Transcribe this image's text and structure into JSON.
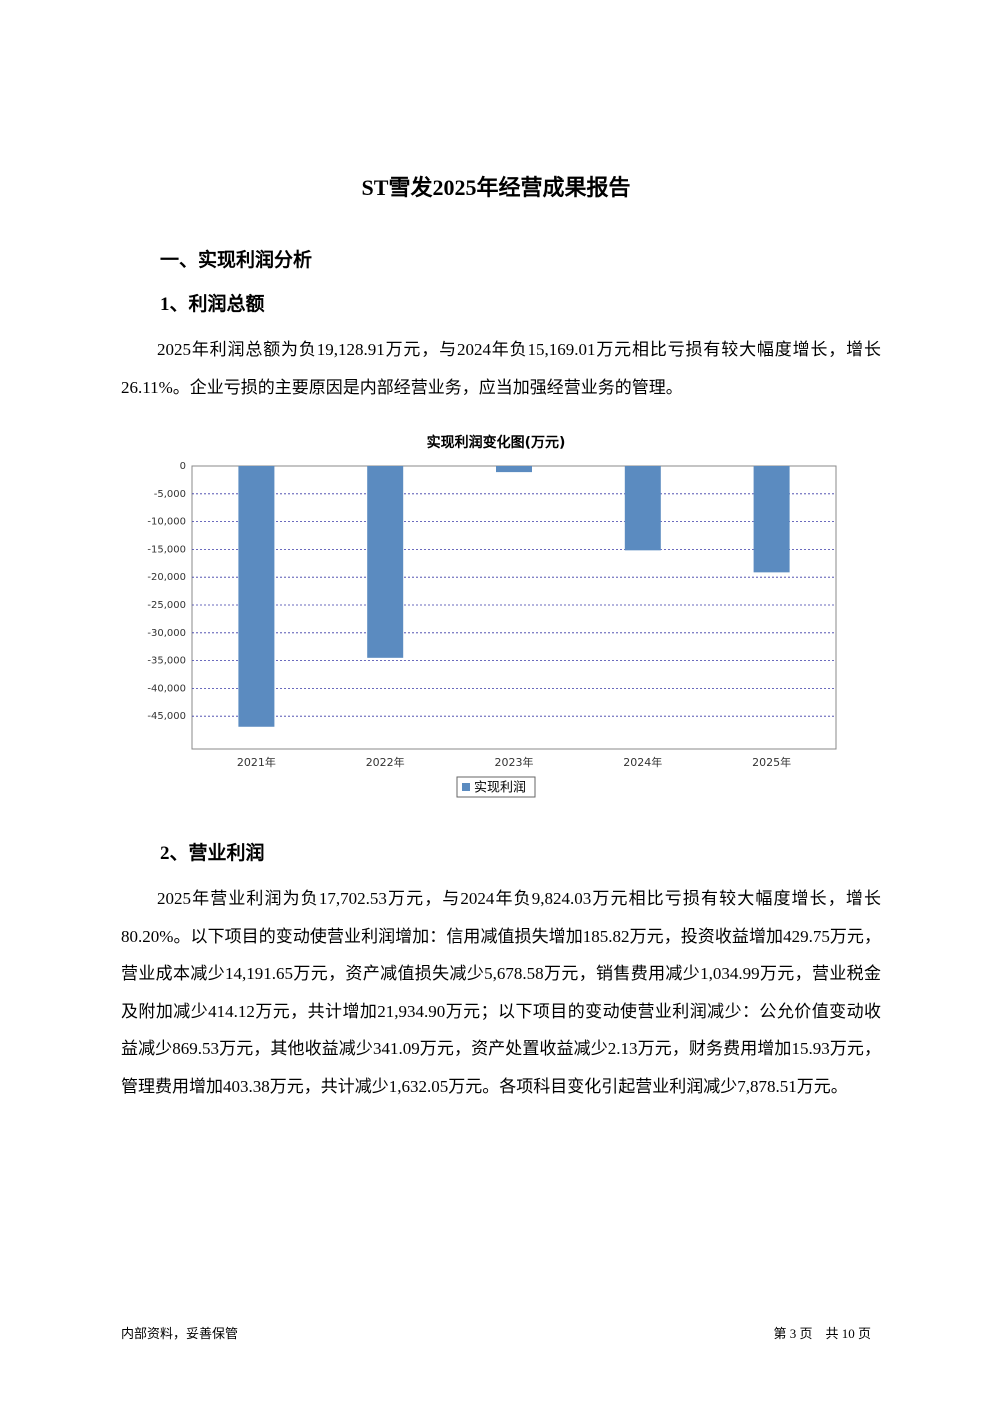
{
  "title": "ST雪发2025年经营成果报告",
  "section_heading": "一、实现利润分析",
  "subsections": [
    {
      "heading": "1、利润总额",
      "paragraph": "2025年利润总额为负19,128.91万元，与2024年负15,169.01万元相比亏损有较大幅度增长，增长26.11%。企业亏损的主要原因是内部经营业务，应当加强经营业务的管理。"
    },
    {
      "heading": "2、营业利润",
      "paragraph": "2025年营业利润为负17,702.53万元，与2024年负9,824.03万元相比亏损有较大幅度增长，增长80.20%。以下项目的变动使营业利润增加：信用减值损失增加185.82万元，投资收益增加429.75万元，营业成本减少14,191.65万元，资产减值损失减少5,678.58万元，销售费用减少1,034.99万元，营业税金及附加减少414.12万元，共计增加21,934.90万元；以下项目的变动使营业利润减少：公允价值变动收益减少869.53万元，其他收益减少341.09万元，资产处置收益减少2.13万元，财务费用增加15.93万元，管理费用增加403.38万元，共计减少1,632.05万元。各项科目变化引起营业利润减少7,878.51万元。"
    }
  ],
  "chart_data": {
    "type": "bar",
    "title": "实现利润变化图(万元)",
    "categories": [
      "2021年",
      "2022年",
      "2023年",
      "2024年",
      "2025年"
    ],
    "series": [
      {
        "name": "实现利润",
        "color": "#5b8bc0",
        "values": [
          -46900,
          -34500,
          -1100,
          -15169.01,
          -19128.91
        ]
      }
    ],
    "ylim": [
      -50900,
      0
    ],
    "yticks": [
      0,
      {
        "value": -5000,
        "label": "-5,000"
      },
      {
        "value": -10000,
        "label": "-10,000"
      },
      {
        "value": -15000,
        "label": "-15,000"
      },
      {
        "value": -20000,
        "label": "-20,000"
      },
      {
        "value": -25000,
        "label": "-25,000"
      },
      {
        "value": -30000,
        "label": "-30,000"
      },
      {
        "value": -35000,
        "label": "-35,000"
      },
      {
        "value": -40000,
        "label": "-40,000"
      },
      {
        "value": -45000,
        "label": "-45,000"
      }
    ],
    "grid": true,
    "legend": "bottom"
  },
  "footer": {
    "left": "内部资料，妥善保管",
    "right": "第 3 页　共 10 页"
  }
}
